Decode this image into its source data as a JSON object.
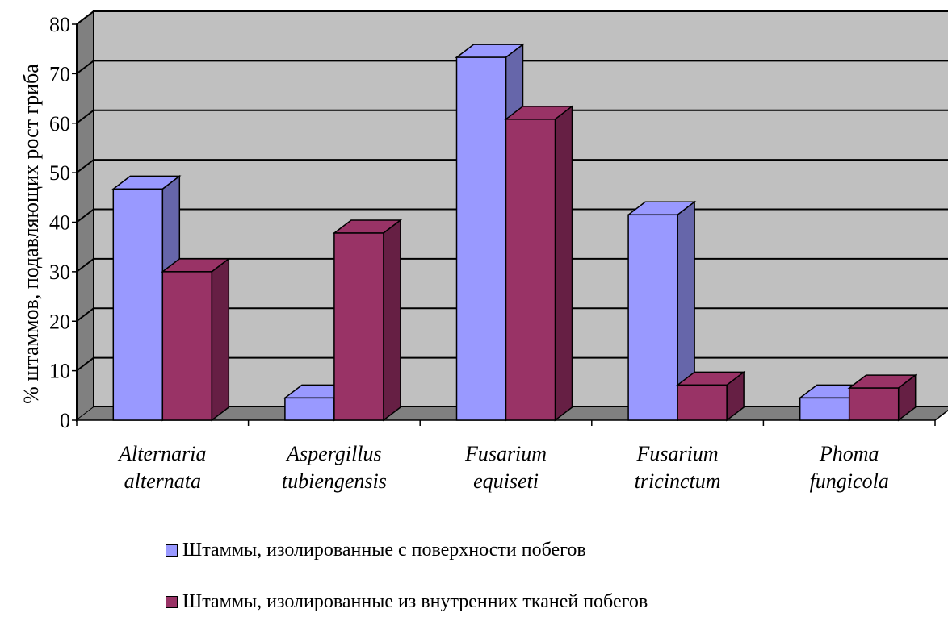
{
  "chart_data": {
    "type": "bar",
    "style": "3d-clustered-column",
    "ylabel": "% штаммов, подавляющих рост гриба",
    "xlabel": "",
    "ylim": [
      0,
      80
    ],
    "yticks": [
      "0",
      "10",
      "20",
      "30",
      "40",
      "50",
      "60",
      "70",
      "80"
    ],
    "grid": true,
    "categories": [
      [
        "Alternaria",
        "alternata"
      ],
      [
        "Aspergillus",
        "tubiengensis"
      ],
      [
        "Fusarium",
        "equiseti"
      ],
      [
        "Fusarium",
        "tricinctum"
      ],
      [
        "Phoma",
        "fungicola"
      ]
    ],
    "series": [
      {
        "name": "Штаммы, изолированные с поверхности побегов",
        "color": "#9999ff",
        "values": [
          46.7,
          4.5,
          73.3,
          41.5,
          4.5
        ]
      },
      {
        "name": "Штаммы, изолированные из внутренних тканей побегов",
        "color": "#993366",
        "values": [
          30,
          37.8,
          60.8,
          7.1,
          6.5
        ]
      }
    ],
    "legend_position": "bottom"
  },
  "colors": {
    "wall": "#c0c0c0",
    "side_wall": "#808080",
    "floor": "#808080",
    "series1_side": "#6666aa",
    "series2_side": "#661f44"
  }
}
